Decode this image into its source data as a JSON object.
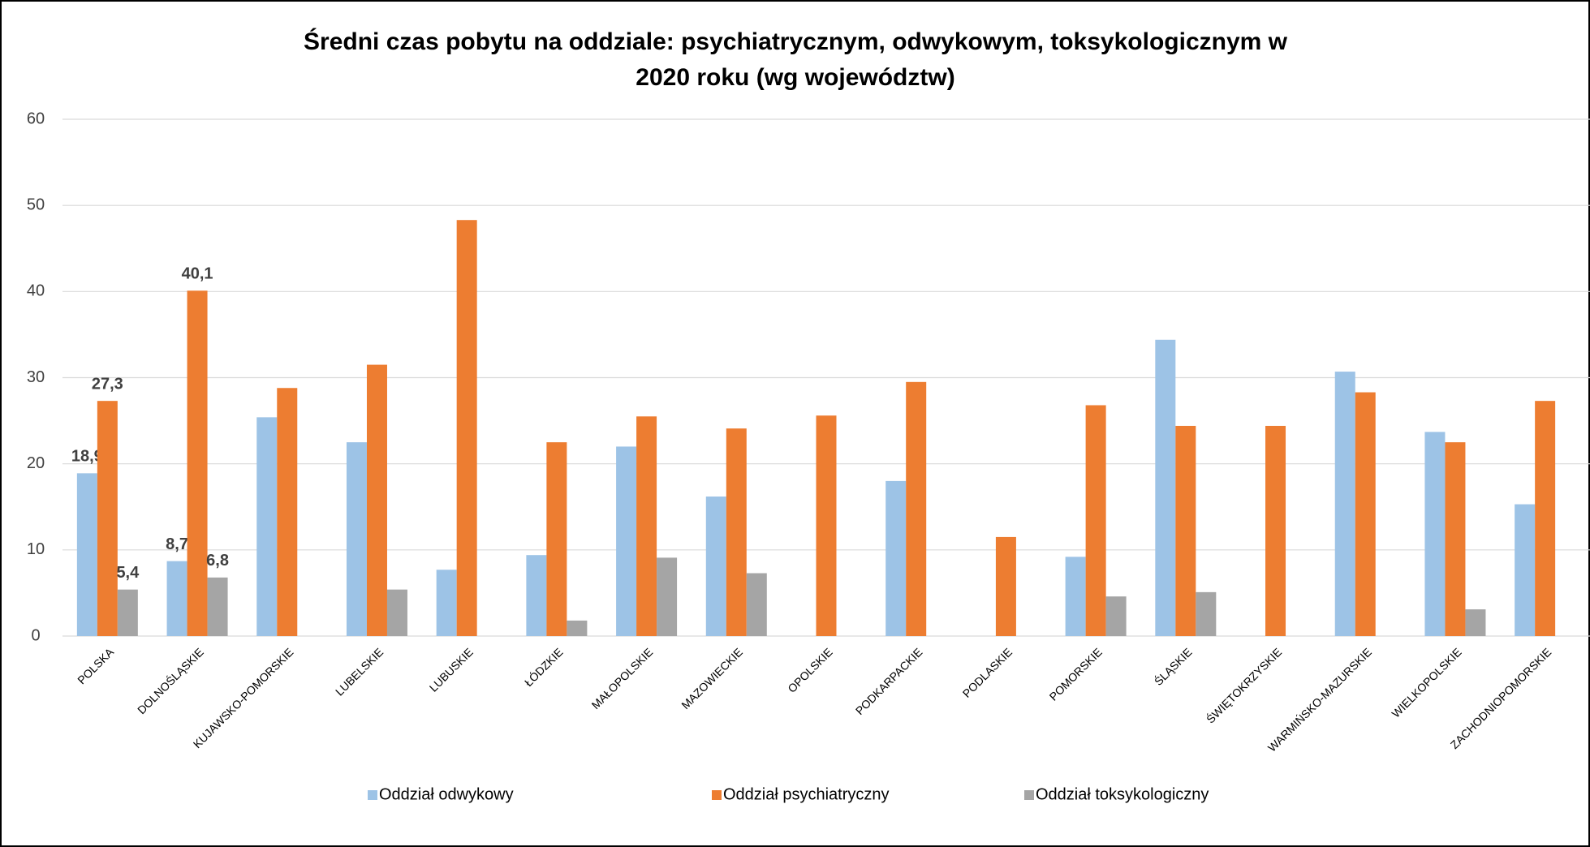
{
  "chart_data": {
    "type": "bar",
    "title": [
      "Średni czas pobytu na oddziale: psychiatrycznym, odwykowym, toksykologicznym w",
      "2020 roku (wg województw)"
    ],
    "categories": [
      "POLSKA",
      "DOLNOŚLĄSKIE",
      "KUJAWSKO-POMORSKIE",
      "LUBELSKIE",
      "LUBUSKIE",
      "ŁÓDZKIE",
      "MAŁOPOLSKIE",
      "MAZOWIECKIE",
      "OPOLSKIE",
      "PODKARPACKIE",
      "PODLASKIE",
      "POMORSKIE",
      "ŚLĄSKIE",
      "ŚWIĘTOKRZYSKIE",
      "WARMIŃSKO-MAZURSKIE",
      "WIELKOPOLSKIE",
      "ZACHODNIOPOMORSKIE"
    ],
    "series": [
      {
        "name": "Oddział odwykowy",
        "color": "#9dc3e6",
        "values": [
          18.9,
          8.7,
          25.4,
          22.5,
          7.7,
          9.4,
          22.0,
          16.2,
          null,
          18.0,
          null,
          9.2,
          34.4,
          null,
          30.7,
          23.7,
          15.3
        ],
        "value_labels": [
          "18,9",
          "8,7",
          null,
          null,
          null,
          null,
          null,
          null,
          null,
          null,
          null,
          null,
          null,
          null,
          null,
          null,
          null
        ]
      },
      {
        "name": "Oddział psychiatryczny",
        "color": "#ed7d31",
        "values": [
          27.3,
          40.1,
          28.8,
          31.5,
          48.3,
          22.5,
          25.5,
          24.1,
          25.6,
          29.5,
          11.5,
          26.8,
          24.4,
          24.4,
          28.3,
          22.5,
          27.3
        ],
        "value_labels": [
          "27,3",
          "40,1",
          null,
          null,
          null,
          null,
          null,
          null,
          null,
          null,
          null,
          null,
          null,
          null,
          null,
          null,
          null
        ]
      },
      {
        "name": "Oddział toksykologiczny",
        "color": "#a5a5a5",
        "values": [
          5.4,
          6.8,
          null,
          5.4,
          null,
          1.8,
          9.1,
          7.3,
          null,
          null,
          null,
          4.6,
          5.1,
          null,
          null,
          3.1,
          null
        ],
        "value_labels": [
          "5,4",
          "6,8",
          null,
          null,
          null,
          null,
          null,
          null,
          null,
          null,
          null,
          null,
          null,
          null,
          null,
          null,
          null
        ]
      }
    ],
    "ylim": [
      0,
      60
    ],
    "yticks": [
      0,
      10,
      20,
      30,
      40,
      50,
      60
    ],
    "grid": true,
    "legend": "bottom"
  }
}
